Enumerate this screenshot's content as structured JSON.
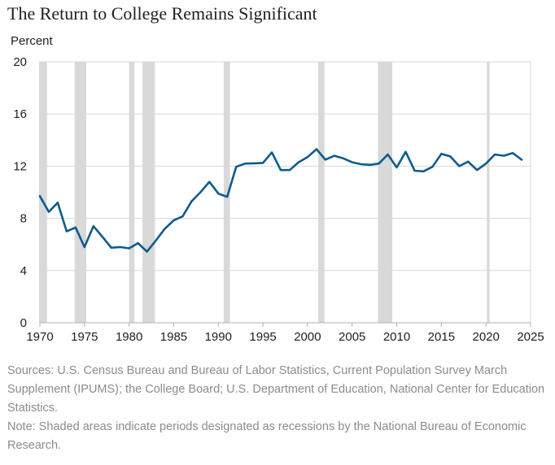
{
  "title": "The Return to College Remains Significant",
  "colors": {
    "line": "#0f5b8d",
    "recession": "#d9d9d9",
    "grid": "#d9d9d9",
    "text": "#1f1f1f",
    "note_text": "#8c8c8c"
  },
  "chart_data": {
    "type": "line",
    "ylabel": "Percent",
    "xlabel": "",
    "xlim": [
      1970,
      2025
    ],
    "ylim": [
      0,
      20
    ],
    "x_ticks": [
      1970,
      1975,
      1980,
      1985,
      1990,
      1995,
      2000,
      2005,
      2010,
      2015,
      2020,
      2025
    ],
    "y_ticks": [
      0,
      4,
      8,
      12,
      16,
      20
    ],
    "grid": "horizontal",
    "recessions": [
      [
        1969.9,
        1970.8
      ],
      [
        1973.9,
        1975.2
      ],
      [
        1980.0,
        1980.6
      ],
      [
        1981.5,
        1982.9
      ],
      [
        1990.6,
        1991.3
      ],
      [
        2001.2,
        2001.9
      ],
      [
        2007.9,
        2009.5
      ],
      [
        2020.1,
        2020.4
      ]
    ],
    "series": [
      {
        "x": [
          1970,
          1971,
          1972,
          1973,
          1974,
          1975,
          1976,
          1977,
          1978,
          1979,
          1980,
          1981,
          1982,
          1983,
          1984,
          1985,
          1986,
          1987,
          1988,
          1989,
          1990,
          1991,
          1992,
          1993,
          1994,
          1995,
          1996,
          1997,
          1998,
          1999,
          2000,
          2001,
          2002,
          2003,
          2004,
          2005,
          2006,
          2007,
          2008,
          2009,
          2010,
          2011,
          2012,
          2013,
          2014,
          2015,
          2016,
          2017,
          2018,
          2019,
          2020,
          2021,
          2022,
          2023,
          2024
        ],
        "values": [
          9.7,
          8.5,
          9.2,
          7.0,
          7.3,
          5.8,
          7.4,
          6.6,
          5.75,
          5.8,
          5.7,
          6.1,
          5.45,
          6.3,
          7.2,
          7.85,
          8.15,
          9.3,
          10.0,
          10.8,
          9.9,
          9.65,
          11.95,
          12.2,
          12.22,
          12.25,
          13.05,
          11.7,
          11.7,
          12.3,
          12.7,
          13.3,
          12.5,
          12.8,
          12.6,
          12.3,
          12.15,
          12.1,
          12.2,
          12.9,
          11.9,
          13.1,
          11.65,
          11.6,
          11.95,
          12.95,
          12.75,
          12.0,
          12.35,
          11.7,
          12.2,
          12.9,
          12.8,
          13.0,
          12.5
        ]
      }
    ]
  },
  "notes": {
    "sources": "Sources: U.S. Census Bureau and Bureau of Labor Statistics, Current Population Survey March Supplement (IPUMS); the College Board; U.S. Department of Education, National Center for Education Statistics.",
    "note": "Note: Shaded areas indicate periods designated as recessions by the National Bureau of Economic Research."
  }
}
